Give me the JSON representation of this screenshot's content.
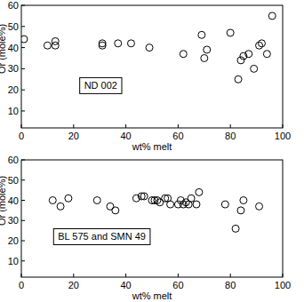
{
  "chart_data": [
    {
      "type": "scatter",
      "annotation": "ND 002",
      "x_label": "wt% melt",
      "y_label": "Or (mole%)",
      "marker": "open-circle",
      "color": "#000000",
      "grid": false,
      "x": [
        1,
        10,
        13,
        13,
        31,
        31,
        37,
        42,
        49,
        62,
        69,
        70,
        71,
        80,
        83,
        84,
        85,
        87,
        89,
        91,
        92,
        94,
        96
      ],
      "values": [
        44,
        41,
        41,
        43,
        41,
        42,
        42,
        42,
        40,
        37,
        46,
        35,
        39,
        47,
        25,
        34,
        36,
        37,
        30,
        41,
        42,
        37,
        55
      ],
      "xlim": [
        0,
        100
      ],
      "xticks": [
        0,
        20,
        40,
        60,
        80,
        100
      ],
      "ylim": [
        2,
        60
      ],
      "yticks": [
        10,
        20,
        30,
        40,
        50,
        60
      ]
    },
    {
      "type": "scatter",
      "annotation": "BL 575 and SMN 49",
      "x_label": "wt% melt",
      "y_label": "Or (mole%)",
      "marker": "open-circle",
      "color": "#000000",
      "grid": false,
      "x": [
        12,
        15,
        18,
        29,
        34,
        36,
        44,
        46,
        47,
        50,
        51,
        52,
        53,
        55,
        56,
        57,
        60,
        61,
        62,
        63,
        64,
        65,
        67,
        68,
        78,
        82,
        84,
        85,
        91
      ],
      "values": [
        40,
        37,
        41,
        40,
        37,
        35,
        41,
        42,
        42,
        40,
        40,
        40,
        39,
        41,
        41,
        38,
        38,
        40,
        38,
        39,
        38,
        41,
        38,
        44,
        38,
        26,
        35,
        40,
        37
      ],
      "xlim": [
        0,
        100
      ],
      "xticks": [
        0,
        20,
        40,
        60,
        80,
        100
      ],
      "ylim": [
        2,
        60
      ],
      "yticks": [
        10,
        20,
        30,
        40,
        50,
        60
      ]
    }
  ]
}
